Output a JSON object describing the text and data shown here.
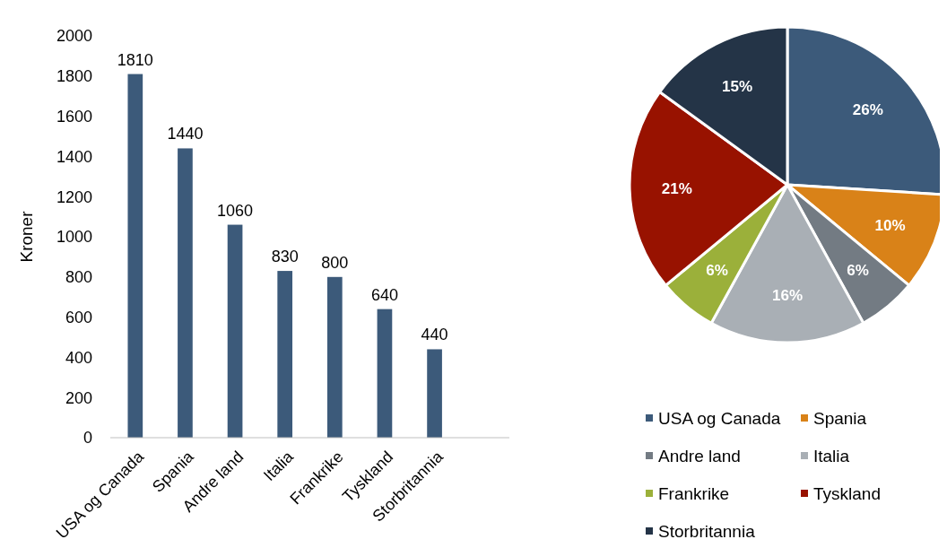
{
  "chart_data": [
    {
      "type": "bar",
      "categories": [
        "USA og Canada",
        "Spania",
        "Andre land",
        "Italia",
        "Frankrike",
        "Tyskland",
        "Storbritannia",
        null
      ],
      "values": [
        1810,
        1440,
        1060,
        830,
        800,
        640,
        440,
        null
      ],
      "color": "#3c5a7a",
      "ylabel": "Kroner",
      "ylim": [
        0,
        2000
      ],
      "yticks": [
        0,
        200,
        400,
        600,
        800,
        1000,
        1200,
        1400,
        1600,
        1800,
        2000
      ],
      "data_labels": true,
      "grid": false
    },
    {
      "type": "pie",
      "categories": [
        "USA og Canada",
        "Spania",
        "Andre land",
        "Italia",
        "Frankrike",
        "Tyskland",
        "Storbritannia"
      ],
      "values": [
        26,
        10,
        6,
        16,
        6,
        21,
        15
      ],
      "colors": [
        "#3c5a7a",
        "#d98218",
        "#737b83",
        "#a9afb5",
        "#9bb03a",
        "#981200",
        "#243447"
      ],
      "value_labels": [
        "26%",
        "10%",
        "6%",
        "16%",
        "6%",
        "21%",
        "15%"
      ],
      "legend": "bottom"
    }
  ]
}
